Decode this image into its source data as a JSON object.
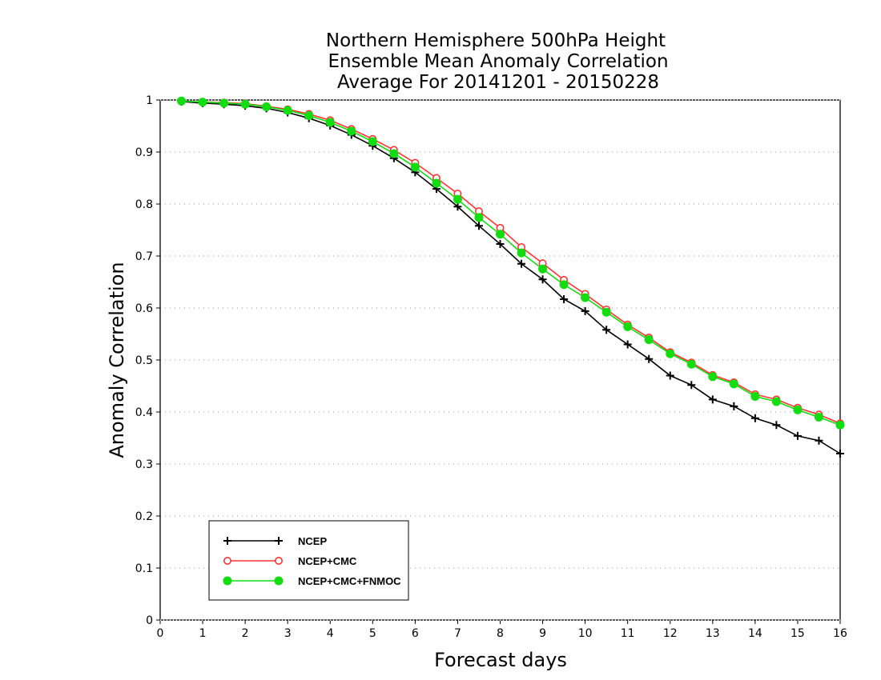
{
  "chart_data": {
    "type": "line",
    "title": [
      "Northern Hemisphere 500hPa Height",
      "Ensemble Mean Anomaly Correlation",
      "Average For 20141201 - 20150228"
    ],
    "xlabel": "Forecast days",
    "ylabel": "Anomaly Correlation",
    "xlim": [
      0,
      16
    ],
    "ylim": [
      0,
      1
    ],
    "xticks": [
      "0",
      "1",
      "2",
      "3",
      "4",
      "5",
      "6",
      "7",
      "8",
      "9",
      "10",
      "11",
      "12",
      "13",
      "14",
      "15",
      "16"
    ],
    "yticks": [
      "0",
      "0.1",
      "0.2",
      "0.3",
      "0.4",
      "0.5",
      "0.6",
      "0.7",
      "0.8",
      "0.9",
      "1"
    ],
    "grid": "dotted horizontal",
    "legend_position": "bottom-left",
    "x": [
      0.5,
      1,
      1.5,
      2,
      2.5,
      3,
      3.5,
      4,
      4.5,
      5,
      5.5,
      6,
      6.5,
      7,
      7.5,
      8,
      8.5,
      9,
      9.5,
      10,
      10.5,
      11,
      11.5,
      12,
      12.5,
      13,
      13.5,
      14,
      14.5,
      15,
      15.5,
      16
    ],
    "series": [
      {
        "name": "NCEP",
        "color": "#000000",
        "marker": "plus",
        "values": [
          0.997,
          0.994,
          0.992,
          0.989,
          0.984,
          0.976,
          0.965,
          0.951,
          0.933,
          0.912,
          0.888,
          0.861,
          0.829,
          0.795,
          0.758,
          0.723,
          0.685,
          0.655,
          0.617,
          0.594,
          0.558,
          0.53,
          0.502,
          0.47,
          0.452,
          0.424,
          0.411,
          0.388,
          0.375,
          0.354,
          0.345,
          0.32
        ]
      },
      {
        "name": "NCEP+CMC",
        "color": "#ff3333",
        "marker": "open-circle",
        "values": [
          0.998,
          0.996,
          0.995,
          0.993,
          0.988,
          0.982,
          0.973,
          0.961,
          0.944,
          0.925,
          0.904,
          0.879,
          0.85,
          0.82,
          0.786,
          0.754,
          0.717,
          0.686,
          0.654,
          0.627,
          0.597,
          0.568,
          0.543,
          0.515,
          0.495,
          0.471,
          0.457,
          0.434,
          0.424,
          0.408,
          0.395,
          0.378
        ]
      },
      {
        "name": "NCEP+CMC+FNMOC",
        "color": "#11dd11",
        "marker": "filled-circle",
        "values": [
          0.998,
          0.996,
          0.994,
          0.992,
          0.987,
          0.98,
          0.97,
          0.957,
          0.94,
          0.92,
          0.897,
          0.871,
          0.84,
          0.809,
          0.774,
          0.742,
          0.706,
          0.675,
          0.645,
          0.62,
          0.592,
          0.564,
          0.539,
          0.512,
          0.492,
          0.468,
          0.454,
          0.43,
          0.42,
          0.404,
          0.39,
          0.375
        ]
      }
    ]
  }
}
